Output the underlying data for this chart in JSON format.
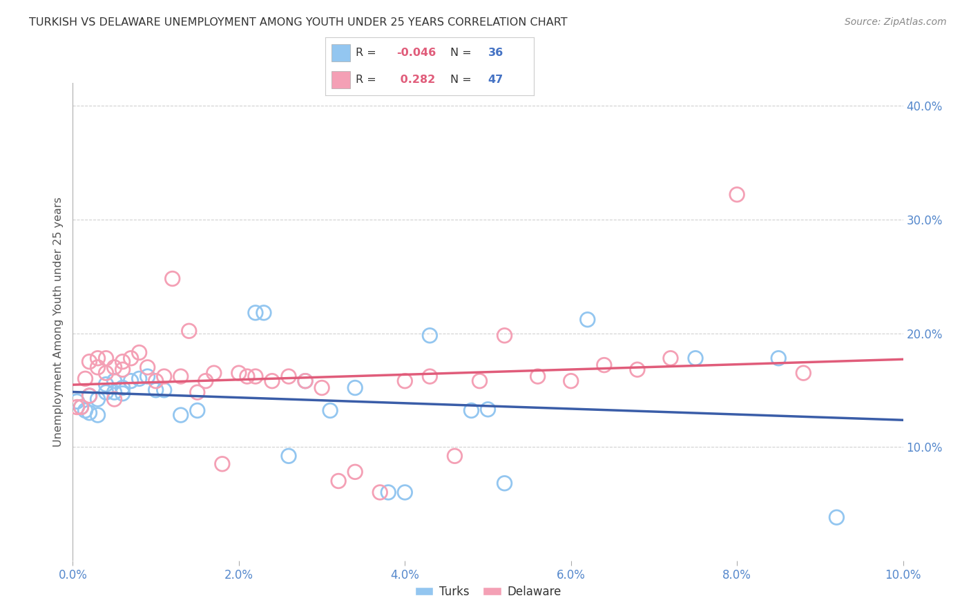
{
  "title": "TURKISH VS DELAWARE UNEMPLOYMENT AMONG YOUTH UNDER 25 YEARS CORRELATION CHART",
  "source": "Source: ZipAtlas.com",
  "ylabel_label": "Unemployment Among Youth under 25 years",
  "xlim": [
    0.0,
    0.1
  ],
  "ylim": [
    0.0,
    0.42
  ],
  "xtick_vals": [
    0.0,
    0.02,
    0.04,
    0.06,
    0.08,
    0.1
  ],
  "xtick_labels": [
    "0.0%",
    "2.0%",
    "4.0%",
    "6.0%",
    "8.0%",
    "10.0%"
  ],
  "ytick_vals": [
    0.1,
    0.2,
    0.3,
    0.4
  ],
  "ytick_labels": [
    "10.0%",
    "20.0%",
    "30.0%",
    "40.0%"
  ],
  "turks_color": "#93c6f0",
  "delaware_color": "#f4a0b5",
  "turks_line_color": "#3a5da8",
  "delaware_line_color": "#e05c7a",
  "R_turks_str": "-0.046",
  "N_turks": 36,
  "R_delaware_str": "0.282",
  "N_delaware": 47,
  "grid_color": "#d0d0d0",
  "tick_color": "#5588cc",
  "turks_x": [
    0.0005,
    0.001,
    0.0015,
    0.002,
    0.002,
    0.003,
    0.003,
    0.004,
    0.004,
    0.005,
    0.005,
    0.006,
    0.006,
    0.007,
    0.008,
    0.009,
    0.01,
    0.011,
    0.013,
    0.015,
    0.022,
    0.023,
    0.026,
    0.028,
    0.031,
    0.034,
    0.038,
    0.04,
    0.043,
    0.048,
    0.05,
    0.052,
    0.062,
    0.075,
    0.085,
    0.092
  ],
  "turks_y": [
    0.14,
    0.135,
    0.132,
    0.13,
    0.145,
    0.128,
    0.142,
    0.155,
    0.148,
    0.158,
    0.148,
    0.152,
    0.147,
    0.158,
    0.16,
    0.162,
    0.15,
    0.15,
    0.128,
    0.132,
    0.218,
    0.218,
    0.092,
    0.158,
    0.132,
    0.152,
    0.06,
    0.06,
    0.198,
    0.132,
    0.133,
    0.068,
    0.212,
    0.178,
    0.178,
    0.038
  ],
  "delaware_x": [
    0.0005,
    0.001,
    0.0015,
    0.002,
    0.002,
    0.003,
    0.003,
    0.004,
    0.004,
    0.005,
    0.005,
    0.006,
    0.006,
    0.007,
    0.008,
    0.009,
    0.01,
    0.011,
    0.012,
    0.013,
    0.014,
    0.015,
    0.016,
    0.017,
    0.018,
    0.02,
    0.021,
    0.022,
    0.024,
    0.026,
    0.028,
    0.03,
    0.032,
    0.034,
    0.037,
    0.04,
    0.043,
    0.046,
    0.049,
    0.052,
    0.056,
    0.06,
    0.064,
    0.068,
    0.072,
    0.08,
    0.088
  ],
  "delaware_y": [
    0.135,
    0.135,
    0.16,
    0.175,
    0.145,
    0.17,
    0.178,
    0.165,
    0.178,
    0.142,
    0.17,
    0.175,
    0.168,
    0.178,
    0.183,
    0.17,
    0.158,
    0.162,
    0.248,
    0.162,
    0.202,
    0.148,
    0.158,
    0.165,
    0.085,
    0.165,
    0.162,
    0.162,
    0.158,
    0.162,
    0.158,
    0.152,
    0.07,
    0.078,
    0.06,
    0.158,
    0.162,
    0.092,
    0.158,
    0.198,
    0.162,
    0.158,
    0.172,
    0.168,
    0.178,
    0.322,
    0.165
  ]
}
